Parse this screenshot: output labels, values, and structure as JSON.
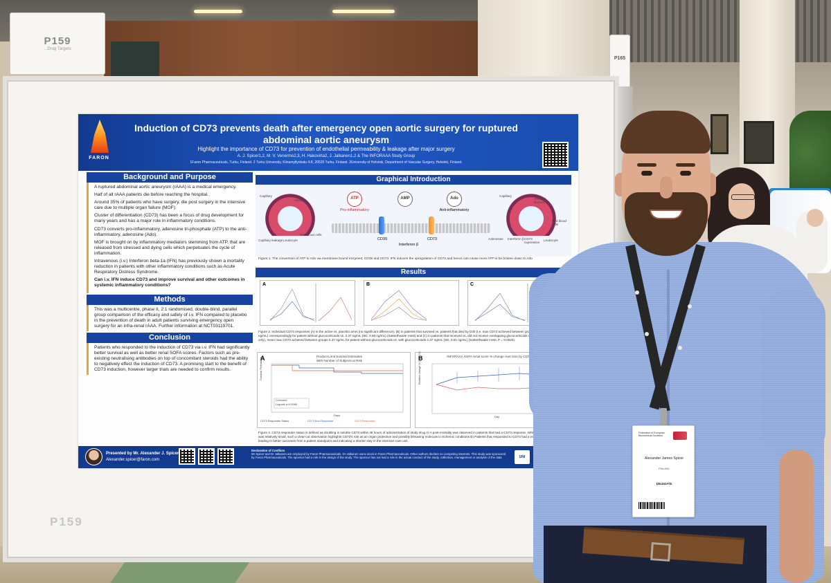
{
  "scene": {
    "board_number": "P159",
    "board_sign_sub": "...Drug Targets",
    "side_sign_number": "P165",
    "panel_label": "P159"
  },
  "poster": {
    "logo_text": "FARON",
    "title": "Induction of CD73 prevents death after emergency open aortic surgery for ruptured abdominal aortic aneurysm",
    "subtitle": "Highlight the importance of CD73 for prevention of endothelial permeability & leakage after major surgery",
    "authors": "A. J. Spicer1,2, M. V. Venermo2,3, H. Hakovirta2, J. Jalkanen1,2 & The INFORAAA Study Group",
    "affiliations": "1Faron Pharmaceuticals, Turku, Finland. 2 Turku University, Kiinamyllynkatu 4-8, 20520 Turku, Finland. 3University of Helsinki, Department of Vascular Surgery, Helsinki, Finland.",
    "background": {
      "heading": "Background and Purpose",
      "paragraphs": [
        "A ruptured abdominal aortic aneurysm (rAAA) is a medical emergency.",
        "Half of all rAAA patients die before reaching the hospital.",
        "Around 35% of patients who have surgery, die post surgery in the intensive care due to multiple organ failure (MOF).",
        "Cluster of differentiation (CD73) has been a focus of drug development for many years and has a major role in inflammatory conditions.",
        "CD73 converts pro-inflammatory, adenosine tri-phosphate (ATP) to the anti-inflammatory, adenosine (Ado).",
        "MOF is brought on by inflammatory mediators stemming from ATP, that are released from stressed and dying cells which perpetuates the cycle of inflammation.",
        "Intravenous (i.v.) Interferon beta-1a (IFN) has previously shown a mortality reduction in patients with other inflammatory conditions such as Acute Respiratory Distress Syndrome."
      ],
      "question": "Can i.v. IFN induce CD73 and improve survival and other outcomes in systemic inflammatory conditions?"
    },
    "methods": {
      "heading": "Methods",
      "text": "This was a multicentre, phase II, 2:1 randomised, double-blind, parallel group comparison of the efficacy and safety of i.v. IFN compared to placebo in the prevention of death in adult patients surviving emergency open surgery for an infra-renal rAAA. Further information at NCT03119701."
    },
    "conclusion": {
      "heading": "Conclusion",
      "text": "Patients who responded to the induction of CD73 via i.v. IFN had significantly better survival as well as better renal SOFA scores. Factors such as pre-existing neutralising antibodies on top of concomitant steroids had the ability to negatively effect the induction of CD73. A promising start to the benefit of CD73 induction, however larger trials are needed to confirm results."
    },
    "graphical": {
      "heading": "Graphical Introduction",
      "atp": "ATP",
      "amp": "AMP",
      "ado": "Ado",
      "pro": "Pro-inflammatory",
      "anti": "Anti-inflammatory",
      "cd39": "CD39",
      "cd73": "CD73",
      "ifn": "Interferon β",
      "left_labels": [
        "Capillary",
        "Alveolus",
        "Capillary leakage",
        "Leukocyte",
        "Red blood cells"
      ],
      "right_labels": [
        "Capillary",
        "Alveolus Normal",
        "Red blood cells",
        "Adenosine",
        "Interferon β",
        "CD73 expression",
        "Leukocyte"
      ],
      "caption": "Figure 1. The conversion of ATP to Ado via membrane bound enzymes; CD39 and CD73. IFN induces the upregulation of CD73 and hence can cause more ATP to be broken down to Ado"
    },
    "results": {
      "heading": "Results",
      "panel_letters": [
        "A",
        "B",
        "C"
      ],
      "caption": "Figure 2. Individual CD73 responses (A) in the active vs. placebo arms (no significant difference), (B) in patients that survived vs. patients that died by D30 (i.e. max CD73 achieved between groups 6.09 ng/mL (SD, 4.95 ng/mL) correspondingly for patient without glucocorticoids vs. 2.37 ng/mL (SD, 0.90 ng/mL) (Satterthwaite t-test) and (C) in patients that received vs. did not receive overlapping glucocorticoids with i.v. IFN (i.e. active arm only), mean max CD73 achieved between groups 5.37 ng/mL for patient without glucocorticoids vs. with glucocorticoids 2.37 ng/mL (SD, 0.91 ng/mL) (Satterthwaite t-test, P = 0.0026).",
      "km_letter": "A",
      "km_title": "Product-Limit Survival Estimates",
      "km_subtitle": "With Number of Subjects at Risk",
      "km_ylabel": "Survival Probability",
      "km_xlabel": "Days",
      "km_legend": [
        "Censored",
        "Logrank p=0.0086"
      ],
      "km_status": "CD73 Responder Status",
      "km_groups": [
        "CD73 Non-Responder",
        "CD73 Responder"
      ],
      "sofa_letter": "B",
      "sofa_title": "INFORAAA SOFA renal score %-change over time by CD73 Responder",
      "sofa_ylabel": "Relative change % (95% CI)",
      "sofa_xlabel": "Day",
      "caption2": "Figure 3. CD73 responder status is defined as doubling in soluble CD73 within 48 hours of administration of study drug A) A post-mortality was observed in patients that had a CD73 response. Whilst the study population was relatively small, such a clear-cut observation highlights CD73's role as an organ protective and possibly lifesaving molecule in ischemic conditions B) Patients that responded to CD73 had a reduction in Renal SOFA leading to better outcomes from a patient standpoint and indicating a shorter stay in the intensive care unit."
    },
    "footer": {
      "presenter": "Presented by Mr. Alexander J. Spicer",
      "email": "Alexander.spicer@faron.com",
      "declaration_title": "Declaration of Conflicts",
      "declaration_text": "Mr Spicer and Dr Jalkanen are employed by Faron Pharmaceuticals. Dr Jalkanen owns stock in Faron Pharmaceuticals. Other authors declare no competing interests. This study was sponsored by Faron Pharmaceuticals. The sponsor had a role in the design of the study. The sponsor has not had a role in the actual conduct of the study, collection, management or analysis of the data",
      "uni_logo": "UNI"
    },
    "colors": {
      "header": "#1a4daf",
      "section_bar": "#16449f",
      "accent": "#e8a33b"
    }
  },
  "badge": {
    "organization": "Federation of European Biochemical Societies",
    "name": "Alexander James Spicer",
    "country": "FINLAND",
    "role": "DELEGATE"
  }
}
